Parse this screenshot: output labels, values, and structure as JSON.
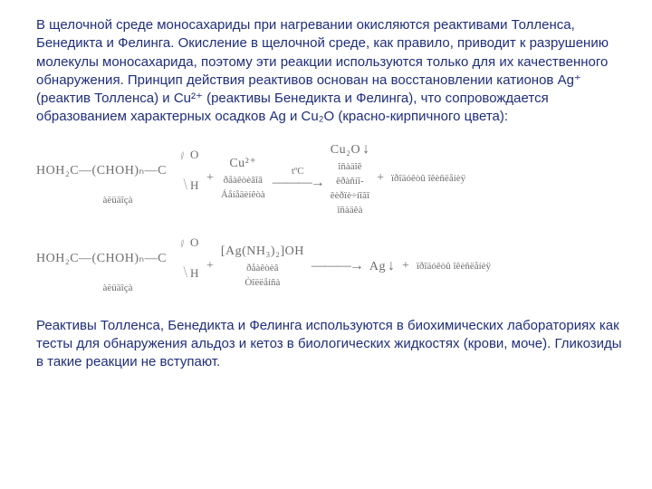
{
  "intro": "В щелочной среде моносахариды при нагревании окисляются реактивами Толленса, Бенедикта и Фелинга. Окисление в щелочной среде, как правило, приводит к разрушению молекулы моносахарида, поэтому эти реакции используются только для их качественного обнаружения. Принцип действия реактивов основан на восстановлении катионов Ag⁺ (реактив Толленса) и Cu²⁺ (реактивы Бенедикта и Фелинга), что сопровождается образованием характерных осадков Ag и Cu₂O (красно-кирпичного цвета):",
  "r1": {
    "reagent_chain": "HOH₂C—(CHOH)ₙ—C",
    "reagent_sub": "àëüäîçà",
    "cu": "Cu²⁺",
    "cu_sub1": "ðåàêòèâîâ",
    "cu_sub2": "Áåíåäèíêòà",
    "arrow_top": "tºC",
    "prod": "Cu₂O",
    "prod_sub1": "îñàäîê",
    "prod_sub2": "êðàñíî-",
    "prod_sub3": "êèðïè÷íîãî",
    "prod_sub4": "îñàäêà",
    "tail": "ïðîäóêòû îêèñëåíèÿ"
  },
  "r2": {
    "reagent_chain": "HOH₂C—(CHOH)ₙ—C",
    "reagent_sub": "àëüäîçà",
    "tollens": "[Ag(NH₃)₂]OH",
    "tollens_sub1": "ðåàêòèâ",
    "tollens_sub2": "Òîëëåíñà",
    "prod": "Ag",
    "tail": "ïðîäóêòû îêèñëåíèÿ"
  },
  "outro": "Реактивы Толленса, Бенедикта и Фелинга используются в биохимических лабораториях как тесты для обнаружения альдоз и кетоз в биологических жидкостях (крови, моче). Гликозиды в такие реакции не вступают.",
  "sym": {
    "plus": "+",
    "longarrow": "———→",
    "down": "↓"
  }
}
